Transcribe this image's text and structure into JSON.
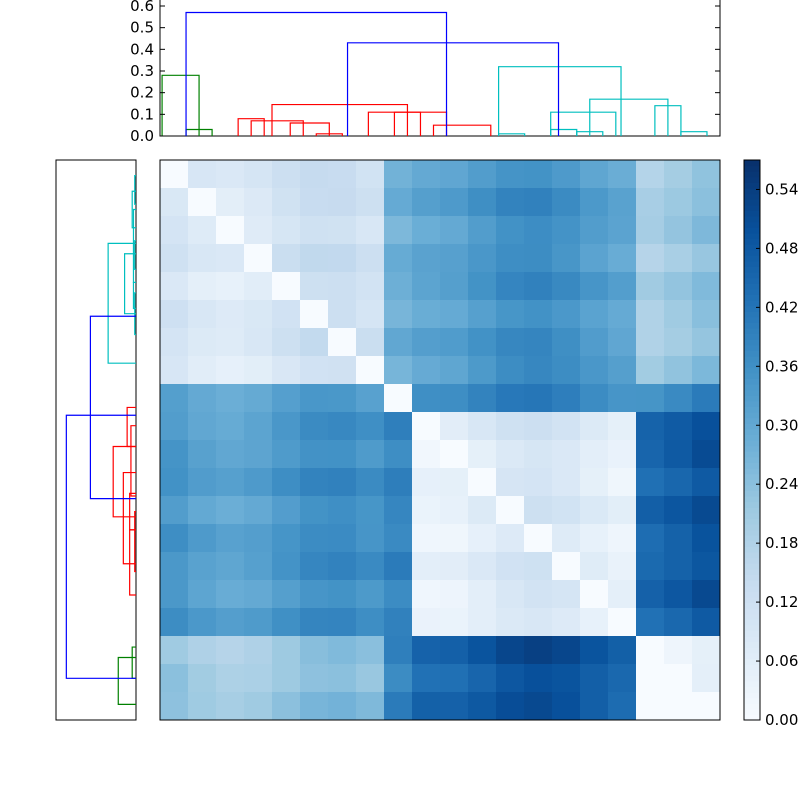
{
  "chart_data": [
    {
      "type": "dendrogram",
      "orientation": "top",
      "ylim": [
        0,
        0.6
      ],
      "yticks": [
        "0.0",
        "0.1",
        "0.2",
        "0.3",
        "0.4",
        "0.5",
        "0.6"
      ],
      "grid": false,
      "leaf_order": [
        19,
        17,
        18,
        3,
        1,
        5,
        4,
        0,
        2,
        6,
        8,
        9,
        16,
        14,
        13,
        15,
        11,
        12,
        10,
        7
      ],
      "clusters": [
        {
          "color": "#008000",
          "leaves": [
            17,
            18,
            19
          ]
        },
        {
          "color": "#ff0000",
          "leaves": [
            0,
            1,
            2,
            3,
            4,
            5,
            6,
            8,
            9
          ]
        },
        {
          "color": "#00bfbf",
          "leaves": [
            7,
            10,
            11,
            12,
            13,
            14,
            15,
            16
          ]
        }
      ],
      "links": [
        {
          "left": 0.08,
          "right": 1.5,
          "height": 0.28,
          "color": "#008000"
        },
        {
          "left": 1,
          "right": 2,
          "height": 0.03,
          "color": "#008000"
        },
        {
          "left": 3,
          "right": 4,
          "height": 0.08,
          "color": "#ff0000"
        },
        {
          "left": 3.5,
          "right": 5.5,
          "height": 0.07,
          "color": "#ff0000"
        },
        {
          "left": 5,
          "right": 6.5,
          "height": 0.06,
          "color": "#ff0000"
        },
        {
          "left": 6,
          "right": 7,
          "height": 0.01,
          "color": "#ff0000"
        },
        {
          "left": 4.3,
          "right": 9.5,
          "height": 0.145,
          "color": "#ff0000"
        },
        {
          "left": 8,
          "right": 10,
          "height": 0.11,
          "color": "#ff0000"
        },
        {
          "left": 9,
          "right": 11,
          "height": 0.11,
          "color": "#ff0000"
        },
        {
          "left": 10.5,
          "right": 12.7,
          "height": 0.05,
          "color": "#ff0000"
        },
        {
          "left": 13,
          "right": 17.7,
          "height": 0.32,
          "color": "#00bfbf"
        },
        {
          "left": 13,
          "right": 14,
          "height": 0.01,
          "color": "#00bfbf"
        },
        {
          "left": 15,
          "right": 17.5,
          "height": 0.11,
          "color": "#00bfbf"
        },
        {
          "left": 15,
          "right": 16,
          "height": 0.03,
          "color": "#00bfbf"
        },
        {
          "left": 16,
          "right": 17,
          "height": 0.02,
          "color": "#00bfbf"
        },
        {
          "left": 16.5,
          "right": 19.5,
          "height": 0.17,
          "color": "#00bfbf"
        },
        {
          "left": 19,
          "right": 20,
          "height": 0.14,
          "color": "#00bfbf"
        },
        {
          "left": 20,
          "right": 21,
          "height": 0.02,
          "color": "#00bfbf"
        },
        {
          "left": 7.2,
          "right": 15.3,
          "height": 0.43,
          "color": "#0000ff"
        },
        {
          "left": 1.0,
          "right": 11.0,
          "height": 0.57,
          "color": "#0000ff"
        }
      ]
    },
    {
      "type": "dendrogram",
      "orientation": "left",
      "grid": false,
      "leaf_order": [
        7,
        10,
        11,
        12,
        13,
        14,
        15,
        16,
        6,
        0,
        8,
        9,
        2,
        4,
        5,
        1,
        3,
        17,
        18,
        19
      ],
      "links": [
        {
          "a": 0.6,
          "b": 1.7,
          "height": 0.01,
          "color": "#00bfbf"
        },
        {
          "a": 1.2,
          "b": 2.6,
          "height": 0.03,
          "color": "#00bfbf"
        },
        {
          "a": 3.1,
          "b": 4.2,
          "height": 0.01,
          "color": "#00bfbf"
        },
        {
          "a": 4.7,
          "b": 5.7,
          "height": 0.02,
          "color": "#00bfbf"
        },
        {
          "a": 5.1,
          "b": 6.7,
          "height": 0.01,
          "color": "#00bfbf"
        },
        {
          "a": 3.6,
          "b": 5.9,
          "height": 0.09,
          "color": "#00bfbf"
        },
        {
          "a": 1.9,
          "b": 4.7,
          "height": 0.02,
          "color": "#00bfbf"
        },
        {
          "a": 3.2,
          "b": 7.8,
          "height": 0.22,
          "color": "#00bfbf"
        },
        {
          "a": 9.5,
          "b": 11.0,
          "height": 0.07,
          "color": "#ff0000"
        },
        {
          "a": 10.2,
          "b": 12.9,
          "height": 0.04,
          "color": "#ff0000"
        },
        {
          "a": 12.8,
          "b": 14.2,
          "height": 0.05,
          "color": "#ff0000"
        },
        {
          "a": 13.5,
          "b": 15.8,
          "height": 0.01,
          "color": "#ff0000"
        },
        {
          "a": 14.2,
          "b": 16.7,
          "height": 0.05,
          "color": "#ff0000"
        },
        {
          "a": 12.0,
          "b": 15.5,
          "height": 0.1,
          "color": "#ff0000"
        },
        {
          "a": 11.0,
          "b": 13.7,
          "height": 0.18,
          "color": "#ff0000"
        },
        {
          "a": 6.0,
          "b": 13.0,
          "height": 0.36,
          "color": "#0000ff"
        },
        {
          "a": 18.7,
          "b": 19.9,
          "height": 0.03,
          "color": "#008000"
        },
        {
          "a": 19.1,
          "b": 20.9,
          "height": 0.14,
          "color": "#008000"
        },
        {
          "a": 9.8,
          "b": 19.9,
          "height": 0.55,
          "color": "#0000ff"
        }
      ],
      "hmax": 0.6
    },
    {
      "type": "heatmap",
      "rows": 20,
      "cols": 20,
      "colormap": "Blues",
      "vmin": 0.0,
      "vmax": 0.57,
      "values": [],
      "colorbar": {
        "ticks": [
          "0.00",
          "0.06",
          "0.12",
          "0.18",
          "0.24",
          "0.30",
          "0.36",
          "0.42",
          "0.48",
          "0.54"
        ],
        "tick_values": [
          0.0,
          0.06,
          0.12,
          0.18,
          0.24,
          0.3,
          0.36,
          0.42,
          0.48,
          0.54
        ]
      }
    }
  ]
}
